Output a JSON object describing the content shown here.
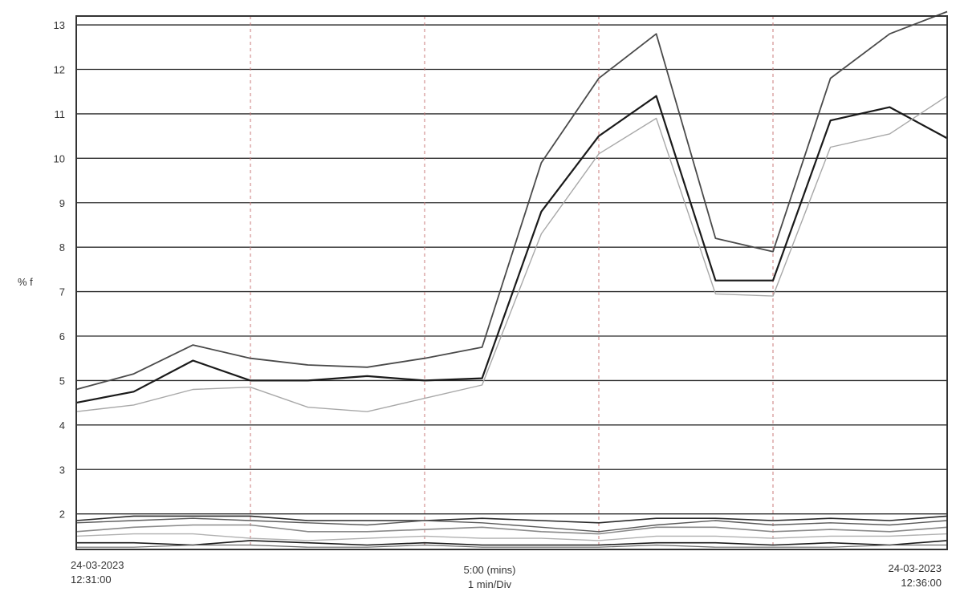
{
  "chart_data": {
    "type": "line",
    "ylabel": "% f",
    "ylim": [
      1.2,
      13.2
    ],
    "yticks": [
      "13",
      "12",
      "11",
      "10",
      "9",
      "8",
      "7",
      "6",
      "5",
      "4",
      "3",
      "2"
    ],
    "ytick_values": [
      13,
      12,
      11,
      10,
      9,
      8,
      7,
      6,
      5,
      4,
      3,
      2
    ],
    "xlim": [
      0,
      5
    ],
    "x_divisions": 5,
    "x": [
      0,
      0.33,
      0.67,
      1.0,
      1.33,
      1.67,
      2.0,
      2.33,
      2.67,
      3.0,
      3.33,
      3.67,
      4.0,
      4.33,
      4.67,
      5.0
    ],
    "x_start_label": [
      "24-03-2023",
      "12:31:00"
    ],
    "x_center_label": [
      "5:00 (mins)",
      "1 min/Div"
    ],
    "x_end_label": [
      "24-03-2023",
      "12:36:00"
    ],
    "grid": true,
    "series": [
      {
        "values": [
          4.8,
          5.15,
          5.8,
          5.5,
          5.35,
          5.3,
          5.5,
          5.75,
          9.9,
          11.8,
          12.8,
          8.2,
          7.9,
          11.8,
          12.8,
          13.3
        ],
        "color": "#4a4a4a",
        "width": 1.8
      },
      {
        "values": [
          4.5,
          4.75,
          5.45,
          5.0,
          5.0,
          5.1,
          5.0,
          5.05,
          8.8,
          10.5,
          11.4,
          7.25,
          7.25,
          10.85,
          11.15,
          10.45
        ],
        "color": "#1a1a1a",
        "width": 2.2
      },
      {
        "values": [
          4.3,
          4.45,
          4.8,
          4.85,
          4.4,
          4.3,
          4.6,
          4.9,
          8.3,
          10.1,
          10.9,
          6.95,
          6.9,
          10.25,
          10.55,
          11.4
        ],
        "color": "#a8a8a8",
        "width": 1.4
      },
      {
        "values": [
          1.85,
          1.95,
          1.95,
          1.95,
          1.85,
          1.85,
          1.85,
          1.9,
          1.85,
          1.8,
          1.9,
          1.9,
          1.85,
          1.9,
          1.85,
          1.95
        ],
        "color": "#2a2a2a",
        "width": 1.6
      },
      {
        "values": [
          1.8,
          1.85,
          1.9,
          1.85,
          1.8,
          1.75,
          1.85,
          1.8,
          1.7,
          1.6,
          1.75,
          1.85,
          1.75,
          1.8,
          1.75,
          1.85
        ],
        "color": "#5a5a5a",
        "width": 1.4
      },
      {
        "values": [
          1.6,
          1.7,
          1.75,
          1.75,
          1.6,
          1.6,
          1.65,
          1.7,
          1.6,
          1.55,
          1.7,
          1.7,
          1.6,
          1.65,
          1.6,
          1.7
        ],
        "color": "#8a8a8a",
        "width": 1.6
      },
      {
        "values": [
          1.5,
          1.55,
          1.55,
          1.45,
          1.4,
          1.45,
          1.5,
          1.45,
          1.45,
          1.4,
          1.5,
          1.5,
          1.45,
          1.5,
          1.5,
          1.55
        ],
        "color": "#b0b0b0",
        "width": 1.4
      },
      {
        "values": [
          1.35,
          1.35,
          1.3,
          1.4,
          1.35,
          1.3,
          1.35,
          1.3,
          1.3,
          1.3,
          1.35,
          1.35,
          1.3,
          1.35,
          1.3,
          1.4
        ],
        "color": "#1a1a1a",
        "width": 1.6
      },
      {
        "values": [
          1.25,
          1.25,
          1.3,
          1.3,
          1.25,
          1.25,
          1.3,
          1.25,
          1.25,
          1.25,
          1.3,
          1.25,
          1.25,
          1.25,
          1.3,
          1.3
        ],
        "color": "#666666",
        "width": 1.2
      }
    ]
  }
}
